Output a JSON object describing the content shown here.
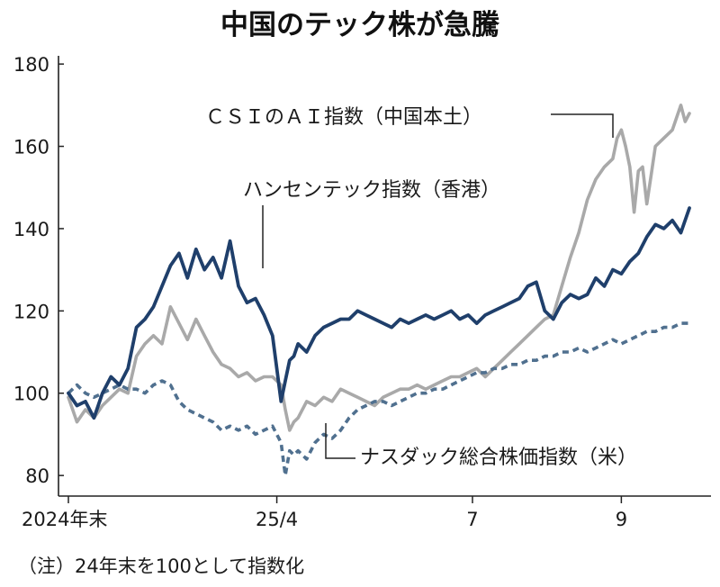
{
  "chart_data": {
    "type": "line",
    "title": "中国のテック株が急騰",
    "note": "（注）24年末を100として指数化",
    "ylim": [
      75,
      182
    ],
    "y_ticks": [
      80,
      100,
      120,
      140,
      160,
      180
    ],
    "y_tick_labels": [
      "80",
      "100",
      "120",
      "140",
      "160",
      "180"
    ],
    "x_range": [
      0,
      146
    ],
    "x_ticks": [
      {
        "pos": 0,
        "label": "2024年末"
      },
      {
        "pos": 49,
        "label": "25/4"
      },
      {
        "pos": 95,
        "label": "7"
      },
      {
        "pos": 130,
        "label": "9"
      }
    ],
    "colors": {
      "axis": "#222222",
      "label_text": "#1a1a1a",
      "leader": "#222222"
    },
    "series": [
      {
        "name": "CSIのAI指数（中国本土）",
        "label": "ＣＳＩのＡＩ指数（中国本土）",
        "color": "#a9a9a9",
        "style": "solid",
        "x": [
          0,
          2,
          4,
          6,
          8,
          10,
          12,
          14,
          16,
          18,
          20,
          22,
          24,
          26,
          28,
          30,
          32,
          34,
          36,
          38,
          40,
          42,
          44,
          46,
          48,
          50,
          51,
          52,
          53,
          54,
          56,
          58,
          60,
          62,
          64,
          66,
          68,
          70,
          72,
          74,
          76,
          78,
          80,
          82,
          84,
          86,
          88,
          90,
          92,
          94,
          96,
          98,
          100,
          102,
          104,
          106,
          108,
          110,
          112,
          114,
          116,
          118,
          120,
          122,
          124,
          126,
          128,
          129,
          130,
          131,
          132,
          133,
          134,
          135,
          136,
          137,
          138,
          140,
          142,
          144,
          145,
          146
        ],
        "values": [
          99,
          93,
          96,
          94,
          97,
          99,
          101,
          100,
          109,
          112,
          114,
          112,
          121,
          117,
          113,
          118,
          114,
          110,
          107,
          106,
          104,
          105,
          103,
          104,
          104,
          102,
          96,
          91,
          93,
          94,
          98,
          97,
          99,
          98,
          101,
          100,
          99,
          98,
          97,
          99,
          100,
          101,
          101,
          102,
          101,
          102,
          103,
          104,
          104,
          105,
          106,
          104,
          106,
          108,
          110,
          112,
          114,
          116,
          118,
          119,
          126,
          133,
          139,
          147,
          152,
          155,
          157,
          162,
          164,
          160,
          155,
          144,
          154,
          155,
          146,
          153,
          160,
          162,
          164,
          170,
          166,
          168
        ]
      },
      {
        "name": "ハンセンテック指数（香港）",
        "label": "ハンセンテック指数（香港）",
        "color": "#1f3f6b",
        "style": "solid",
        "x": [
          0,
          2,
          4,
          6,
          8,
          10,
          12,
          14,
          16,
          18,
          20,
          22,
          24,
          26,
          28,
          30,
          32,
          34,
          36,
          38,
          40,
          42,
          44,
          46,
          48,
          50,
          51,
          52,
          53,
          54,
          56,
          58,
          60,
          62,
          64,
          66,
          68,
          70,
          72,
          74,
          76,
          78,
          80,
          82,
          84,
          86,
          88,
          90,
          92,
          94,
          96,
          98,
          100,
          102,
          104,
          106,
          108,
          110,
          112,
          114,
          116,
          118,
          120,
          122,
          124,
          126,
          128,
          130,
          132,
          134,
          136,
          138,
          140,
          142,
          144,
          146
        ],
        "values": [
          100,
          97,
          98,
          94,
          100,
          104,
          102,
          106,
          116,
          118,
          121,
          126,
          131,
          134,
          128,
          135,
          130,
          133,
          128,
          137,
          126,
          122,
          123,
          119,
          114,
          98,
          103,
          108,
          109,
          112,
          110,
          114,
          116,
          117,
          118,
          118,
          120,
          119,
          118,
          117,
          116,
          118,
          117,
          118,
          119,
          118,
          119,
          120,
          118,
          119,
          117,
          119,
          120,
          121,
          122,
          123,
          126,
          127,
          120,
          118,
          122,
          124,
          123,
          124,
          128,
          126,
          130,
          129,
          132,
          134,
          138,
          141,
          140,
          142,
          139,
          145
        ]
      },
      {
        "name": "ナスダック総合株価指数（米）",
        "label": "ナスダック総合株価指数（米）",
        "color": "#50708f",
        "style": "dashed",
        "x": [
          0,
          2,
          4,
          6,
          8,
          10,
          12,
          14,
          16,
          18,
          20,
          22,
          24,
          26,
          28,
          30,
          32,
          34,
          36,
          38,
          40,
          42,
          44,
          46,
          48,
          50,
          51,
          52,
          53,
          54,
          56,
          58,
          60,
          62,
          64,
          66,
          68,
          70,
          72,
          74,
          76,
          78,
          80,
          82,
          84,
          86,
          88,
          90,
          92,
          94,
          96,
          98,
          100,
          102,
          104,
          106,
          108,
          110,
          112,
          114,
          116,
          118,
          120,
          122,
          124,
          126,
          128,
          130,
          132,
          134,
          136,
          138,
          140,
          142,
          144,
          146
        ],
        "values": [
          100,
          102,
          100,
          99,
          100,
          101,
          102,
          101,
          101,
          100,
          102,
          103,
          102,
          98,
          96,
          95,
          94,
          93,
          91,
          92,
          91,
          92,
          90,
          91,
          92,
          88,
          80,
          86,
          85,
          86,
          84,
          88,
          90,
          89,
          91,
          94,
          96,
          97,
          98,
          98,
          97,
          98,
          99,
          100,
          100,
          101,
          101,
          102,
          103,
          104,
          105,
          105,
          106,
          106,
          107,
          107,
          108,
          108,
          109,
          109,
          110,
          110,
          111,
          110,
          111,
          112,
          113,
          112,
          113,
          114,
          115,
          115,
          116,
          116,
          117,
          117
        ]
      }
    ]
  }
}
